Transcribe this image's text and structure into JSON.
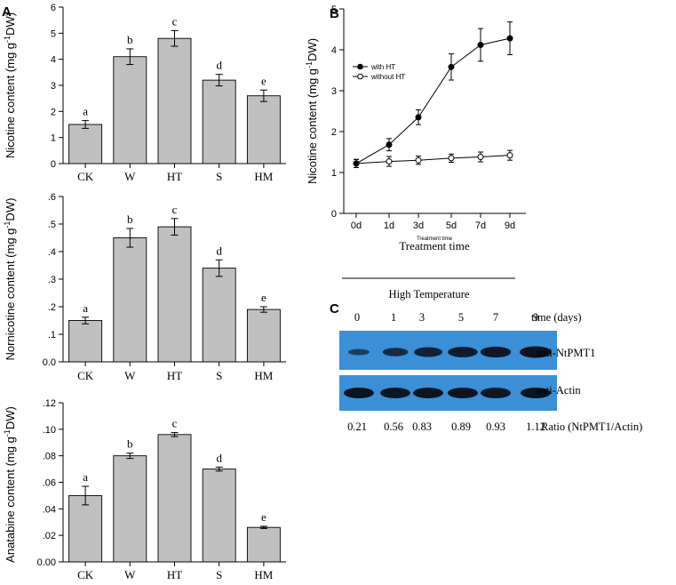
{
  "panel_labels": {
    "a": "A",
    "b": "B",
    "c": "C"
  },
  "chart_data": [
    {
      "id": "nicotine",
      "type": "bar",
      "ylabel_prefix": "Nicotine content (mg g",
      "ylabel_sup": "-1",
      "ylabel_suffix": "DW)",
      "categories": [
        "CK",
        "W",
        "HT",
        "S",
        "HM"
      ],
      "values": [
        1.5,
        4.1,
        4.8,
        3.2,
        2.6
      ],
      "errors": [
        0.15,
        0.3,
        0.3,
        0.22,
        0.22
      ],
      "letters": [
        "a",
        "b",
        "c",
        "d",
        "e"
      ],
      "ylim": [
        0,
        6
      ],
      "yticks": [
        0,
        1,
        2,
        3,
        4,
        5,
        6
      ],
      "ytick_labels": [
        "0",
        "1",
        "2",
        "3",
        "4",
        "5",
        "6"
      ]
    },
    {
      "id": "nornicotine",
      "type": "bar",
      "ylabel_prefix": "Nornicotine content (mg g",
      "ylabel_sup": "-1",
      "ylabel_suffix": "DW)",
      "categories": [
        "CK",
        "W",
        "HT",
        "S",
        "HM"
      ],
      "values": [
        0.15,
        0.45,
        0.49,
        0.34,
        0.19
      ],
      "errors": [
        0.012,
        0.034,
        0.03,
        0.03,
        0.01
      ],
      "letters": [
        "a",
        "b",
        "c",
        "d",
        "e"
      ],
      "ylim": [
        0,
        0.6
      ],
      "yticks": [
        0,
        0.1,
        0.2,
        0.3,
        0.4,
        0.5,
        0.6
      ],
      "ytick_labels": [
        "0.0",
        ".1",
        ".2",
        ".3",
        ".4",
        ".5",
        ".6"
      ]
    },
    {
      "id": "anatabine",
      "type": "bar",
      "ylabel_prefix": "Anatabine content (mg g",
      "ylabel_sup": "-1",
      "ylabel_suffix": "DW)",
      "categories": [
        "CK",
        "W",
        "HT",
        "S",
        "HM"
      ],
      "values": [
        0.05,
        0.08,
        0.096,
        0.07,
        0.026
      ],
      "errors": [
        0.007,
        0.002,
        0.0015,
        0.0015,
        0.0008
      ],
      "letters": [
        "a",
        "b",
        "c",
        "d",
        "e"
      ],
      "ylim": [
        0,
        0.12
      ],
      "yticks": [
        0,
        0.02,
        0.04,
        0.06,
        0.08,
        0.1,
        0.12
      ],
      "ytick_labels": [
        "0.00",
        ".02",
        ".04",
        ".06",
        ".08",
        ".10",
        ".12"
      ]
    },
    {
      "id": "timecourse",
      "type": "line",
      "ylabel_prefix": "Nicotine content (mg g",
      "ylabel_sup": "-1",
      "ylabel_suffix": "DW)",
      "xlabel": "Treatment time",
      "xlabel_small": "Treatment time",
      "categories": [
        "0d",
        "1d",
        "3d",
        "5d",
        "7d",
        "9d"
      ],
      "ylim": [
        0,
        5
      ],
      "yticks": [
        0,
        1,
        2,
        3,
        4,
        5
      ],
      "ytick_labels": [
        "0",
        "1",
        "2",
        "3",
        "4",
        "5"
      ],
      "series": [
        {
          "name": "with HT",
          "marker": "filled",
          "values": [
            1.22,
            1.68,
            2.35,
            3.58,
            4.12,
            4.28
          ],
          "errors": [
            0.1,
            0.15,
            0.18,
            0.32,
            0.4,
            0.4
          ]
        },
        {
          "name": "without HT",
          "marker": "open",
          "values": [
            1.22,
            1.27,
            1.3,
            1.35,
            1.38,
            1.42
          ],
          "errors": [
            0.1,
            0.12,
            0.1,
            0.1,
            0.12,
            0.12
          ]
        }
      ]
    }
  ],
  "western_blot": {
    "header": "High Temperature",
    "time_points": [
      "0",
      "1",
      "3",
      "5",
      "7",
      "9"
    ],
    "time_label": "time (days)",
    "bands": [
      {
        "label": "anti-NtPMT1",
        "intensity": [
          0.25,
          0.55,
          0.75,
          0.85,
          0.9,
          1.0
        ]
      },
      {
        "label": "anti-Actin",
        "intensity": [
          1.0,
          0.95,
          1.0,
          1.0,
          0.95,
          1.0
        ]
      }
    ],
    "ratios": [
      "0.21",
      "0.56",
      "0.83",
      "0.89",
      "0.93",
      "1.12"
    ],
    "ratio_label": "Ratio (NtPMT1/Actin)",
    "membrane_color": "#3a8fd6",
    "band_color": "#0b1420"
  },
  "colors": {
    "bar_fill": "#c0c0c0",
    "axis": "#000000"
  }
}
